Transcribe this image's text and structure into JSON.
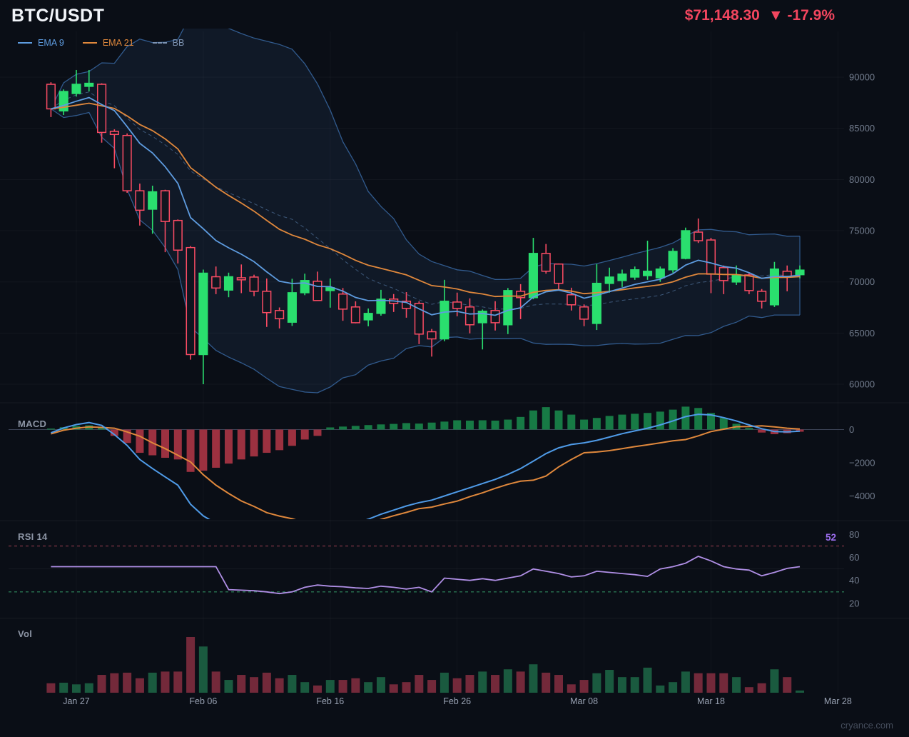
{
  "header": {
    "symbol": "BTC/USDT",
    "price": "$71,148.30",
    "change": "▼ -17.9%"
  },
  "legend": {
    "items": [
      {
        "label": "EMA 9",
        "color": "#5e9ce0",
        "style": "solid"
      },
      {
        "label": "EMA 21",
        "color": "#e0883c",
        "style": "solid"
      },
      {
        "label": "BB",
        "color": "#7d93b2",
        "style": "dashed"
      }
    ]
  },
  "panels": {
    "macd": {
      "label": "MACD"
    },
    "rsi": {
      "label": "RSI 14",
      "value": "52"
    },
    "volume": {
      "label": "Vol"
    }
  },
  "watermark": {
    "text": "cryance.com"
  },
  "colors": {
    "background": "#0a0e16",
    "title": "#f2f5fa",
    "price_down": "#f4465f",
    "candle_up": "#2adf6e",
    "candle_down": "#fb4c64",
    "ema9": "#5e9ce0",
    "ema21": "#e0883c",
    "bb_line": "#35639a",
    "bb_mid": "#49688f",
    "bb_fill": "rgba(82,130,200,0.10)",
    "macd_line": "#4f9be8",
    "macd_signal": "#e0883c",
    "hist_up": "#177a45",
    "hist_down": "#9c3140",
    "vol_up": "#1a5a3f",
    "vol_down": "#73293a",
    "rsi_line": "#b08fe6",
    "rsi_upper_line": "#8f3a4a",
    "rsi_lower_line": "#2f8a5f",
    "axis_text": "#717b8c",
    "date_text": "#98a1b2",
    "zero_line": "#3c4456"
  },
  "axes": {
    "price_ticks": [
      90000,
      85000,
      80000,
      75000,
      70000,
      65000,
      60000
    ],
    "macd_ticks": [
      {
        "v": 0,
        "label": "0"
      },
      {
        "v": -2000,
        "label": "−2000"
      },
      {
        "v": -4000,
        "label": "−4000"
      }
    ],
    "rsi_ticks": [
      80,
      60,
      40,
      20
    ],
    "rsi_upper": 70,
    "rsi_mid": 50,
    "rsi_lower": 30,
    "date_ticks": [
      {
        "label": "Jan 27",
        "index": 2
      },
      {
        "label": "Feb 06",
        "index": 12
      },
      {
        "label": "Feb 16",
        "index": 22
      },
      {
        "label": "Feb 26",
        "index": 32
      },
      {
        "label": "Mar 08",
        "index": 42
      },
      {
        "label": "Mar 18",
        "index": 52
      },
      {
        "label": "Mar 28",
        "index": 62
      }
    ]
  },
  "chart_data": {
    "type": "candlestick",
    "title": "BTC/USDT daily with EMA 9, EMA 21, Bollinger Bands, MACD, RSI 14 and Volume",
    "last_price": 71148.3,
    "change_pct": -17.9,
    "price_axis_range": [
      58500,
      94700
    ],
    "macd_axis_range": [
      -7000,
      1700
    ],
    "rsi_axis_range": [
      15,
      85
    ],
    "bb_period": 20,
    "bb_mult": 2,
    "ema_fast": 9,
    "ema_slow": 21,
    "dates": [
      "Jan 25",
      "Jan 26",
      "Jan 27",
      "Jan 28",
      "Jan 29",
      "Jan 30",
      "Jan 31",
      "Feb 01",
      "Feb 02",
      "Feb 03",
      "Feb 04",
      "Feb 05",
      "Feb 06",
      "Feb 07",
      "Feb 08",
      "Feb 09",
      "Feb 10",
      "Feb 11",
      "Feb 12",
      "Feb 13",
      "Feb 14",
      "Feb 15",
      "Feb 16",
      "Feb 17",
      "Feb 18",
      "Feb 19",
      "Feb 20",
      "Feb 21",
      "Feb 22",
      "Feb 23",
      "Feb 24",
      "Feb 25",
      "Feb 26",
      "Feb 27",
      "Feb 28",
      "Mar 01",
      "Mar 02",
      "Mar 03",
      "Mar 04",
      "Mar 05",
      "Mar 06",
      "Mar 07",
      "Mar 08",
      "Mar 09",
      "Mar 10",
      "Mar 11",
      "Mar 12",
      "Mar 13",
      "Mar 14",
      "Mar 15",
      "Mar 16",
      "Mar 17",
      "Mar 18",
      "Mar 19",
      "Mar 20",
      "Mar 21",
      "Mar 22",
      "Mar 23",
      "Mar 24",
      "Mar 25"
    ],
    "ohlc": [
      [
        89300,
        89500,
        86100,
        86900
      ],
      [
        86700,
        88800,
        86300,
        88600
      ],
      [
        88400,
        90700,
        88100,
        89300
      ],
      [
        89100,
        90700,
        88600,
        89400
      ],
      [
        89300,
        89400,
        83600,
        84600
      ],
      [
        84700,
        84900,
        81100,
        84400
      ],
      [
        84300,
        84500,
        78700,
        78900
      ],
      [
        78900,
        79600,
        75500,
        77000
      ],
      [
        77100,
        79400,
        74700,
        78800
      ],
      [
        78900,
        79000,
        72900,
        75900
      ],
      [
        76000,
        76100,
        71800,
        73100
      ],
      [
        73350,
        73500,
        62400,
        62900
      ],
      [
        62900,
        71200,
        60000,
        70850
      ],
      [
        70500,
        71500,
        68800,
        69400
      ],
      [
        69200,
        70900,
        68500,
        70500
      ],
      [
        70400,
        71700,
        68900,
        70200
      ],
      [
        70470,
        70700,
        68600,
        69080
      ],
      [
        69080,
        70330,
        65600,
        67000
      ],
      [
        67200,
        67500,
        65450,
        66400
      ],
      [
        66060,
        70300,
        65700,
        68940
      ],
      [
        68940,
        70800,
        68700,
        70130
      ],
      [
        70060,
        71000,
        68200,
        68180
      ],
      [
        69150,
        70330,
        67480,
        69430
      ],
      [
        68810,
        69400,
        66200,
        67340
      ],
      [
        67550,
        68100,
        65950,
        66010
      ],
      [
        66290,
        67400,
        65660,
        66920
      ],
      [
        66920,
        69220,
        66700,
        68310
      ],
      [
        68320,
        68810,
        67060,
        67900
      ],
      [
        68110,
        69000,
        66500,
        67410
      ],
      [
        67900,
        68100,
        63920,
        64900
      ],
      [
        65130,
        65400,
        62700,
        64430
      ],
      [
        64430,
        70200,
        64200,
        68110
      ],
      [
        68030,
        68950,
        66640,
        67400
      ],
      [
        67550,
        68390,
        64970,
        65810
      ],
      [
        66010,
        67300,
        63400,
        67130
      ],
      [
        67200,
        68110,
        65250,
        66010
      ],
      [
        65810,
        69400,
        64900,
        69150
      ],
      [
        69080,
        69780,
        66360,
        68460
      ],
      [
        68460,
        74300,
        68300,
        72780
      ],
      [
        72780,
        73700,
        70800,
        71040
      ],
      [
        71740,
        71800,
        69150,
        69860
      ],
      [
        68740,
        69430,
        67200,
        67760
      ],
      [
        67550,
        67800,
        65670,
        66360
      ],
      [
        65940,
        71740,
        65300,
        69860
      ],
      [
        69850,
        71390,
        68950,
        70470
      ],
      [
        70130,
        71200,
        69500,
        70760
      ],
      [
        70470,
        71500,
        70200,
        71180
      ],
      [
        70610,
        74020,
        70200,
        71040
      ],
      [
        70400,
        71500,
        70000,
        71250
      ],
      [
        71180,
        73300,
        70900,
        72980
      ],
      [
        72290,
        75300,
        72200,
        75000
      ],
      [
        74860,
        76190,
        73800,
        74020
      ],
      [
        74090,
        74300,
        68900,
        70750
      ],
      [
        71390,
        71600,
        68800,
        70130
      ],
      [
        69990,
        71600,
        69700,
        70680
      ],
      [
        70680,
        70900,
        68800,
        69150
      ],
      [
        69080,
        69300,
        67400,
        68110
      ],
      [
        67760,
        71950,
        67550,
        71250
      ],
      [
        71040,
        71600,
        69080,
        70540
      ],
      [
        70700,
        71600,
        70350,
        71150
      ]
    ],
    "volume_rel": [
      0.17,
      0.18,
      0.15,
      0.17,
      0.32,
      0.35,
      0.36,
      0.26,
      0.36,
      0.38,
      0.38,
      1.0,
      0.83,
      0.38,
      0.23,
      0.32,
      0.28,
      0.36,
      0.26,
      0.32,
      0.19,
      0.13,
      0.23,
      0.23,
      0.26,
      0.19,
      0.28,
      0.15,
      0.19,
      0.32,
      0.23,
      0.36,
      0.26,
      0.32,
      0.38,
      0.32,
      0.42,
      0.38,
      0.51,
      0.36,
      0.32,
      0.15,
      0.23,
      0.35,
      0.41,
      0.28,
      0.28,
      0.45,
      0.13,
      0.19,
      0.38,
      0.35,
      0.35,
      0.35,
      0.28,
      0.1,
      0.17,
      0.42,
      0.28,
      0.04
    ],
    "rsi": [
      52,
      52,
      52,
      52,
      52,
      52,
      52,
      52,
      52,
      52,
      52,
      52,
      52,
      52,
      32,
      31.5,
      31,
      30,
      28.5,
      30,
      34,
      36,
      35,
      34.5,
      33.5,
      33,
      35,
      34,
      32.5,
      34,
      30,
      42,
      41,
      40,
      41.5,
      40,
      42,
      44,
      50,
      48,
      46,
      43,
      44,
      48,
      47,
      46,
      45,
      43.5,
      50,
      52,
      55,
      61,
      57,
      52,
      50,
      49,
      44,
      47,
      50.5,
      52
    ],
    "macd": [
      -200,
      100,
      300,
      420,
      250,
      -300,
      -950,
      -1800,
      -2350,
      -2850,
      -3350,
      -4500,
      -5200,
      -5650,
      -5900,
      -6100,
      -6250,
      -6400,
      -6450,
      -6350,
      -6200,
      -6100,
      -6000,
      -5850,
      -5650,
      -5400,
      -5100,
      -4850,
      -4600,
      -4400,
      -4250,
      -4000,
      -3750,
      -3500,
      -3250,
      -3000,
      -2700,
      -2350,
      -1900,
      -1450,
      -1100,
      -900,
      -800,
      -650,
      -450,
      -250,
      -80,
      80,
      280,
      520,
      780,
      920,
      880,
      720,
      520,
      280,
      50,
      -120,
      -140,
      -100
    ],
    "macd_hist": [
      60,
      140,
      220,
      260,
      120,
      -380,
      -810,
      -1400,
      -1550,
      -1700,
      -1800,
      -2550,
      -2480,
      -2300,
      -2050,
      -1800,
      -1620,
      -1400,
      -1240,
      -980,
      -600,
      -380,
      130,
      180,
      220,
      270,
      310,
      340,
      390,
      360,
      420,
      480,
      560,
      540,
      560,
      540,
      600,
      760,
      1150,
      1350,
      1150,
      900,
      600,
      700,
      820,
      900,
      950,
      1000,
      1080,
      1200,
      1380,
      1300,
      1000,
      700,
      350,
      100,
      -180,
      -280,
      -220,
      -130
    ]
  }
}
